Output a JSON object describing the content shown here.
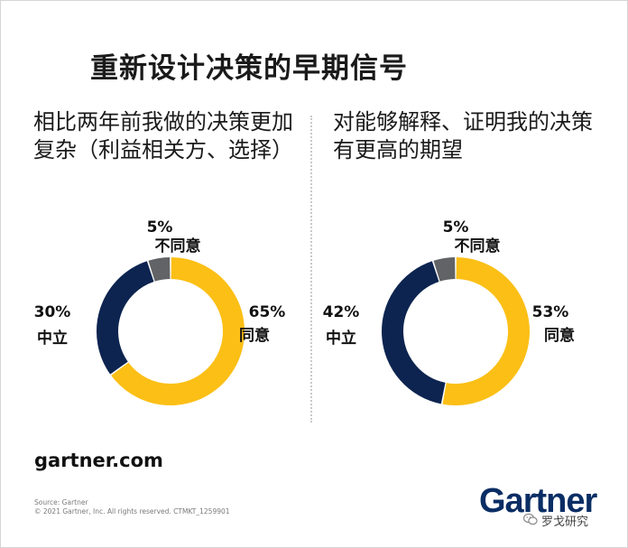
{
  "title": "重新设计决策的早期信号",
  "website": "gartner.com",
  "source": {
    "line1": "Source: Gartner",
    "line2": "© 2021 Gartner, Inc. All rights reserved. CTMKT_1259901"
  },
  "brand": "Gartner",
  "watermark": "罗戈研究",
  "colors": {
    "agree": "#fbbf16",
    "neutral": "#0d2450",
    "disagree": "#626366"
  },
  "chart_data": [
    {
      "type": "pie",
      "title": "相比两年前我做的决策更加复杂（利益相关方、选择）",
      "slices": [
        {
          "label": "同意",
          "value": 65,
          "value_label": "65%",
          "color": "#fbbf16"
        },
        {
          "label": "中立",
          "value": 30,
          "value_label": "30%",
          "color": "#0d2450"
        },
        {
          "label": "不同意",
          "value": 5,
          "value_label": "5%",
          "color": "#626366"
        }
      ]
    },
    {
      "type": "pie",
      "title": "对能够解释、证明我的决策有更高的期望",
      "slices": [
        {
          "label": "同意",
          "value": 53,
          "value_label": "53%",
          "color": "#fbbf16"
        },
        {
          "label": "中立",
          "value": 42,
          "value_label": "42%",
          "color": "#0d2450"
        },
        {
          "label": "不同意",
          "value": 5,
          "value_label": "5%",
          "color": "#626366"
        }
      ]
    }
  ]
}
